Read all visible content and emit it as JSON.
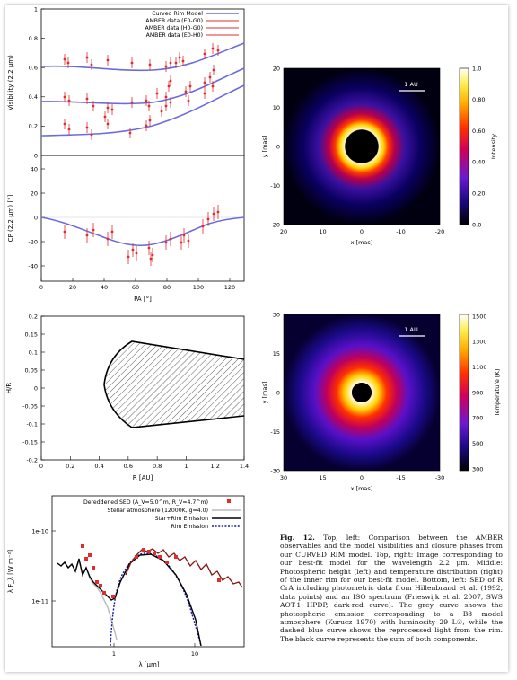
{
  "vis_panel": {
    "ylabel": "Visibility (2.2 μm)",
    "yticks": [
      "0",
      "0.2",
      "0.4",
      "0.6",
      "0.8",
      "1"
    ],
    "legend": [
      "Curved Rim Model",
      "AMBER data (E0-G0)",
      "AMBER data (H0-G0)",
      "AMBER data (E0-H0)"
    ]
  },
  "cp_panel": {
    "ylabel": "CP (2.2 μm) [°]",
    "yticks": [
      "40",
      "20",
      "0",
      "-20",
      "-40"
    ],
    "xticks": [
      "0",
      "20",
      "40",
      "60",
      "80",
      "100",
      "120"
    ],
    "xlabel": "PA [°]"
  },
  "hr_panel": {
    "ylabel": "H/R",
    "yticks": [
      "0.2",
      "0.15",
      "0.1",
      "0.05",
      "0",
      "-0.05",
      "-0.1",
      "-0.15",
      "-0.2"
    ],
    "xticks": [
      "0",
      "0.2",
      "0.4",
      "0.6",
      "0.8",
      "1",
      "1.2",
      "1.4"
    ],
    "xlabel": "R [AU]"
  },
  "img_top": {
    "scale": "1 AU",
    "ylabel": "y [mas]",
    "xlabel": "x [mas]",
    "yticks": [
      "20",
      "10",
      "0",
      "-10",
      "-20"
    ],
    "xticks": [
      "20",
      "10",
      "0",
      "-10",
      "-20"
    ],
    "cbar_label": "Intensity",
    "cbar_ticks": [
      "1.0",
      "0.80",
      "0.60",
      "0.40",
      "0.20",
      "0.0"
    ]
  },
  "img_mid": {
    "scale": "1 AU",
    "ylabel": "y [mas]",
    "xlabel": "x [mas]",
    "yticks": [
      "30",
      "15",
      "0",
      "-15",
      "-30"
    ],
    "xticks": [
      "30",
      "15",
      "0",
      "-15",
      "-30"
    ],
    "cbar_label": "Temperature [K]",
    "cbar_ticks": [
      "1500",
      "1300",
      "1100",
      "900",
      "700",
      "500",
      "300"
    ]
  },
  "sed_panel": {
    "ylabel": "λ F_λ [W m⁻²]",
    "yticks": [
      "1e-10",
      "1e-11"
    ],
    "xticks": [
      "1",
      "10"
    ],
    "xlabel": "λ [μm]",
    "legend": [
      "Dereddened SED (A_V=5.0^m, R_V=4.7^m)",
      "Stellar atmosphere (12000K, g=4.0)",
      "Star+Rim Emission",
      "Rim Emission"
    ]
  },
  "caption": {
    "fig": "Fig. 12.",
    "text": " Top, left: Comparison between the AMBER observables and the model visibilities and closure phases from our CURVED RIM model. Top, right: Image corresponding to our best-fit model for the wavelength 2.2 μm. Middle: Photospheric height (left) and temperature distribution (right) of the inner rim for our best-fit model. Bottom, left: SED of R CrA including photometric data from Hillenbrand et al. (1992, data points) and an ISO spectrum (Frieswijk et al. 2007, SWS AOT-1 HPDP, dark-red curve). The grey curve shows the photospheric emission corresponding to a B8 model atmosphere (Kurucz 1970) with luminosity 29 L☉, while the dashed blue curve shows the reprocessed light from the rim. The black curve represents the sum of both components."
  },
  "colors": {
    "model": "#6b6bdf",
    "data": "#e32b2b",
    "sed_iso": "#8b1010",
    "rim": "#1a1aa8"
  }
}
